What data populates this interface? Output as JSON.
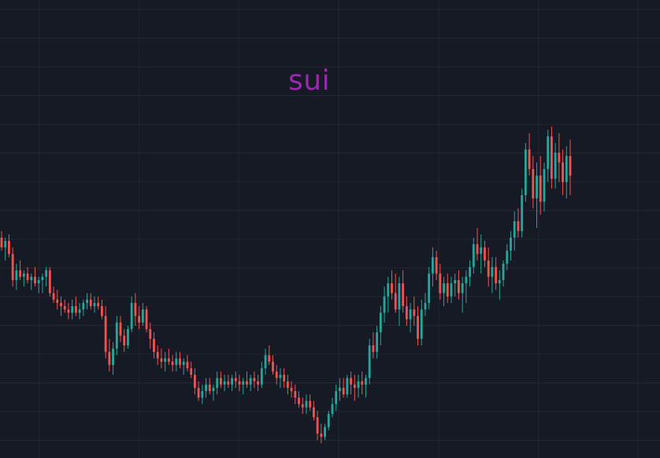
{
  "chart_data": {
    "type": "candlestick",
    "title": "sui",
    "grid": true,
    "colors": {
      "background": "#161a25",
      "grid": "#232733",
      "up": "#26a69a",
      "down": "#ef5350",
      "title": "#9c27b0"
    },
    "ylim": [
      0,
      100
    ],
    "candles": [
      [
        67,
        69,
        63,
        64
      ],
      [
        64,
        67,
        60,
        66
      ],
      [
        66,
        68,
        61,
        62
      ],
      [
        62,
        64,
        52,
        54
      ],
      [
        54,
        59,
        51,
        57
      ],
      [
        57,
        60,
        54,
        55
      ],
      [
        55,
        57,
        52,
        56
      ],
      [
        56,
        58,
        53,
        54
      ],
      [
        54,
        56,
        51,
        55
      ],
      [
        55,
        58,
        52,
        53
      ],
      [
        53,
        55,
        50,
        54
      ],
      [
        54,
        56,
        50,
        55
      ],
      [
        55,
        58,
        52,
        57
      ],
      [
        57,
        58,
        49,
        50
      ],
      [
        50,
        52,
        47,
        48
      ],
      [
        48,
        51,
        45,
        47
      ],
      [
        47,
        49,
        43,
        46
      ],
      [
        46,
        48,
        44,
        45
      ],
      [
        45,
        47,
        42,
        44
      ],
      [
        44,
        48,
        42,
        46
      ],
      [
        46,
        49,
        43,
        44
      ],
      [
        44,
        47,
        42,
        45
      ],
      [
        45,
        48,
        43,
        47
      ],
      [
        47,
        50,
        45,
        48
      ],
      [
        48,
        50,
        45,
        46
      ],
      [
        46,
        49,
        44,
        47
      ],
      [
        47,
        49,
        45,
        46
      ],
      [
        46,
        48,
        42,
        43
      ],
      [
        43,
        46,
        30,
        32
      ],
      [
        32,
        36,
        26,
        28
      ],
      [
        28,
        35,
        25,
        33
      ],
      [
        33,
        43,
        31,
        41
      ],
      [
        41,
        43,
        35,
        37
      ],
      [
        37,
        39,
        32,
        34
      ],
      [
        34,
        40,
        33,
        39
      ],
      [
        39,
        49,
        38,
        47
      ],
      [
        47,
        50,
        40,
        43
      ],
      [
        43,
        46,
        39,
        41
      ],
      [
        41,
        47,
        40,
        45
      ],
      [
        45,
        46,
        38,
        39
      ],
      [
        39,
        41,
        33,
        36
      ],
      [
        36,
        38,
        30,
        32
      ],
      [
        32,
        34,
        28,
        30
      ],
      [
        30,
        33,
        27,
        29
      ],
      [
        29,
        32,
        26,
        30
      ],
      [
        30,
        33,
        28,
        29
      ],
      [
        29,
        31,
        26,
        28
      ],
      [
        28,
        32,
        26,
        30
      ],
      [
        30,
        32,
        27,
        28
      ],
      [
        28,
        30,
        25,
        29
      ],
      [
        29,
        31,
        26,
        27
      ],
      [
        27,
        29,
        24,
        25
      ],
      [
        25,
        27,
        19,
        21
      ],
      [
        21,
        23,
        17,
        18
      ],
      [
        18,
        22,
        16,
        20
      ],
      [
        20,
        24,
        18,
        22
      ],
      [
        22,
        24,
        19,
        20
      ],
      [
        20,
        22,
        17,
        21
      ],
      [
        21,
        26,
        19,
        24
      ],
      [
        24,
        26,
        21,
        22
      ],
      [
        22,
        25,
        20,
        23
      ],
      [
        23,
        25,
        21,
        22
      ],
      [
        22,
        25,
        20,
        24
      ],
      [
        24,
        26,
        21,
        23
      ],
      [
        23,
        25,
        20,
        22
      ],
      [
        22,
        24,
        19,
        23
      ],
      [
        23,
        26,
        21,
        22
      ],
      [
        22,
        25,
        20,
        24
      ],
      [
        24,
        26,
        21,
        23
      ],
      [
        23,
        25,
        20,
        22
      ],
      [
        22,
        29,
        21,
        27
      ],
      [
        27,
        33,
        25,
        31
      ],
      [
        31,
        34,
        28,
        29
      ],
      [
        29,
        31,
        25,
        26
      ],
      [
        26,
        28,
        22,
        24
      ],
      [
        24,
        27,
        21,
        25
      ],
      [
        25,
        27,
        21,
        23
      ],
      [
        23,
        25,
        19,
        21
      ],
      [
        21,
        23,
        18,
        20
      ],
      [
        20,
        22,
        16,
        18
      ],
      [
        18,
        20,
        15,
        16
      ],
      [
        16,
        18,
        13,
        15
      ],
      [
        15,
        19,
        13,
        17
      ],
      [
        17,
        19,
        14,
        15
      ],
      [
        15,
        17,
        11,
        12
      ],
      [
        12,
        14,
        5,
        7
      ],
      [
        7,
        10,
        4,
        6
      ],
      [
        6,
        10,
        5,
        9
      ],
      [
        9,
        14,
        8,
        13
      ],
      [
        13,
        18,
        12,
        16
      ],
      [
        16,
        22,
        14,
        20
      ],
      [
        20,
        24,
        17,
        21
      ],
      [
        21,
        24,
        18,
        19
      ],
      [
        19,
        25,
        18,
        24
      ],
      [
        24,
        26,
        19,
        22
      ],
      [
        22,
        25,
        17,
        21
      ],
      [
        21,
        25,
        18,
        23
      ],
      [
        23,
        26,
        19,
        22
      ],
      [
        22,
        25,
        18,
        24
      ],
      [
        24,
        36,
        22,
        34
      ],
      [
        34,
        38,
        30,
        32
      ],
      [
        32,
        40,
        30,
        38
      ],
      [
        38,
        46,
        34,
        44
      ],
      [
        44,
        52,
        41,
        49
      ],
      [
        49,
        55,
        44,
        53
      ],
      [
        53,
        57,
        48,
        50
      ],
      [
        50,
        56,
        44,
        45
      ],
      [
        45,
        55,
        40,
        53
      ],
      [
        53,
        57,
        44,
        46
      ],
      [
        46,
        49,
        40,
        42
      ],
      [
        42,
        47,
        38,
        45
      ],
      [
        45,
        49,
        40,
        43
      ],
      [
        43,
        46,
        34,
        36
      ],
      [
        36,
        48,
        34,
        45
      ],
      [
        45,
        50,
        43,
        47
      ],
      [
        47,
        58,
        45,
        56
      ],
      [
        56,
        64,
        52,
        61
      ],
      [
        61,
        63,
        54,
        56
      ],
      [
        56,
        59,
        48,
        50
      ],
      [
        50,
        55,
        46,
        53
      ],
      [
        53,
        56,
        47,
        49
      ],
      [
        49,
        55,
        47,
        53
      ],
      [
        53,
        56,
        49,
        54
      ],
      [
        54,
        57,
        48,
        50
      ],
      [
        50,
        55,
        44,
        53
      ],
      [
        53,
        57,
        47,
        55
      ],
      [
        55,
        60,
        52,
        58
      ],
      [
        58,
        67,
        56,
        65
      ],
      [
        65,
        70,
        60,
        62
      ],
      [
        62,
        68,
        56,
        64
      ],
      [
        64,
        66,
        58,
        60
      ],
      [
        60,
        64,
        52,
        55
      ],
      [
        55,
        61,
        50,
        58
      ],
      [
        58,
        61,
        51,
        53
      ],
      [
        53,
        57,
        48,
        54
      ],
      [
        54,
        60,
        52,
        59
      ],
      [
        59,
        65,
        57,
        63
      ],
      [
        63,
        69,
        60,
        67
      ],
      [
        67,
        75,
        63,
        72
      ],
      [
        72,
        76,
        67,
        69
      ],
      [
        69,
        82,
        67,
        80
      ],
      [
        80,
        96,
        78,
        94
      ],
      [
        94,
        99,
        86,
        88
      ],
      [
        88,
        92,
        76,
        79
      ],
      [
        79,
        90,
        70,
        86
      ],
      [
        86,
        92,
        74,
        78
      ],
      [
        78,
        90,
        75,
        88
      ],
      [
        88,
        100,
        84,
        98
      ],
      [
        98,
        101,
        82,
        85
      ],
      [
        85,
        96,
        82,
        93
      ],
      [
        93,
        99,
        84,
        90
      ],
      [
        90,
        94,
        80,
        84
      ],
      [
        84,
        95,
        79,
        92
      ],
      [
        92,
        97,
        80,
        86
      ]
    ]
  }
}
